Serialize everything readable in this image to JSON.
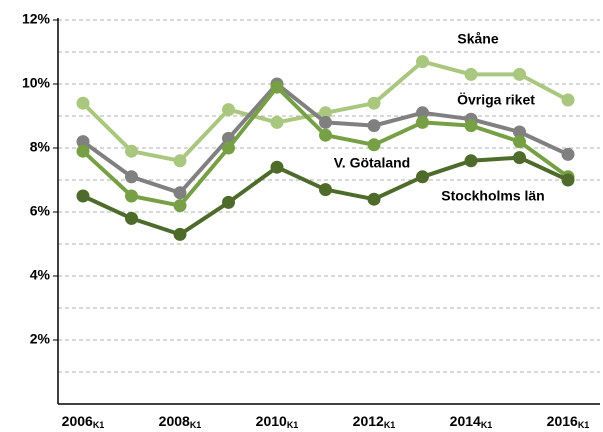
{
  "chart_data": {
    "type": "line",
    "categories": [
      "2006",
      null,
      "2008",
      null,
      "2010",
      null,
      "2012",
      null,
      "2014",
      null,
      "2016"
    ],
    "category_subscript": "K1",
    "series": [
      {
        "name": "Skåne",
        "color": "#a9c77e",
        "values": [
          9.4,
          7.9,
          7.6,
          9.2,
          8.8,
          9.1,
          9.4,
          10.7,
          10.3,
          10.3,
          9.5
        ]
      },
      {
        "name": "Övriga riket",
        "color": "#808080",
        "values": [
          8.2,
          7.1,
          6.6,
          8.3,
          10.0,
          8.8,
          8.7,
          9.1,
          8.9,
          8.5,
          7.8
        ]
      },
      {
        "name": "V. Götaland",
        "color": "#77a046",
        "values": [
          7.9,
          6.5,
          6.2,
          8.0,
          9.9,
          8.4,
          8.1,
          8.8,
          8.7,
          8.2,
          7.1
        ]
      },
      {
        "name": "Stockholms län",
        "color": "#4e6b2c",
        "values": [
          6.5,
          5.8,
          5.3,
          6.3,
          7.4,
          6.7,
          6.4,
          7.1,
          7.6,
          7.7,
          7.0
        ]
      }
    ],
    "ylim": [
      0,
      12
    ],
    "yticks": [
      {
        "value": 2,
        "label": "2%"
      },
      {
        "value": 4,
        "label": "4%"
      },
      {
        "value": 6,
        "label": "6%"
      },
      {
        "value": 8,
        "label": "8%"
      },
      {
        "value": 10,
        "label": "10%"
      },
      {
        "value": 12,
        "label": "12%"
      }
    ],
    "minor_gridlines": [
      1,
      3,
      5,
      7,
      9,
      11
    ],
    "grid": true
  }
}
